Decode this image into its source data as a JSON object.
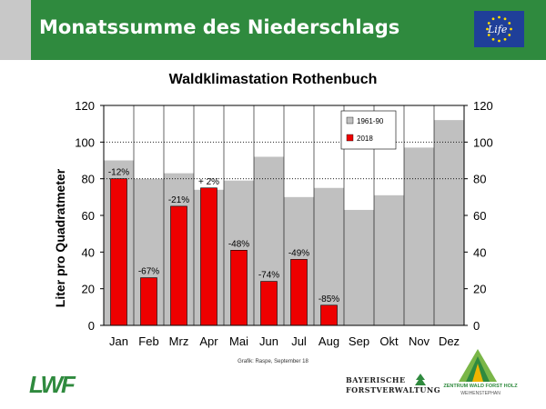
{
  "header": {
    "title": "Monatssumme des Niederschlags",
    "eu_logo_text": "Life"
  },
  "colors": {
    "header_green": "#2f8a3e",
    "series_1961_90": "#c0c0c0",
    "series_2018": "#ee0000"
  },
  "chart_data": {
    "type": "bar",
    "title": "Waldklimastation Rothenbuch",
    "xlabel": "",
    "ylabel": "Liter pro Quadratmeter",
    "ylim": [
      0,
      120
    ],
    "yticks": [
      0,
      20,
      40,
      60,
      80,
      100,
      120
    ],
    "grid": "dotted horizontal at 80 and 100",
    "secondary_y_axis": true,
    "legend_position": "top-right",
    "categories": [
      "Jan",
      "Feb",
      "Mrz",
      "Apr",
      "Mai",
      "Jun",
      "Jul",
      "Aug",
      "Sep",
      "Okt",
      "Nov",
      "Dez"
    ],
    "series": [
      {
        "name": "1961-90",
        "values": [
          90,
          80,
          83,
          74,
          79,
          92,
          70,
          75,
          63,
          71,
          97,
          112
        ]
      },
      {
        "name": "2018",
        "values": [
          80,
          26,
          65,
          75,
          41,
          24,
          36,
          11,
          null,
          null,
          null,
          null
        ]
      }
    ],
    "bar_labels": [
      "-12%",
      "-67%",
      "-21%",
      "+ 2%",
      "-48%",
      "-74%",
      "-49%",
      "-85%",
      "",
      "",
      "",
      ""
    ]
  },
  "footer": {
    "credit": "Grafik: Raspe, September 18",
    "lwf_logo": "LWF",
    "bf_line1": "BAYERISCHE",
    "bf_line2": "FORSTVERWALTUNG",
    "zw_line1": "ZENTRUM WALD FORST HOLZ",
    "zw_line2": "WEIHENSTEPHAN"
  }
}
